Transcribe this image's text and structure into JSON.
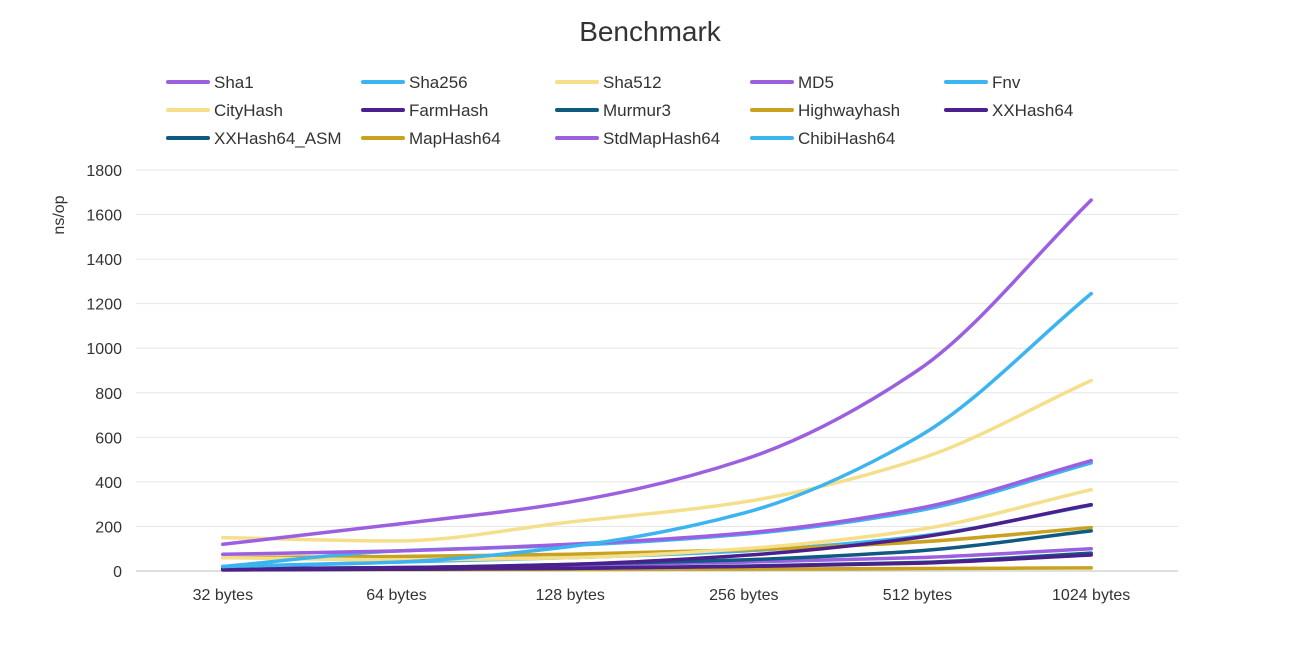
{
  "chart_data": {
    "type": "line",
    "title": "Benchmark",
    "xlabel": "",
    "ylabel": "ns/op",
    "ylim": [
      0,
      1800
    ],
    "yticks": [
      0,
      200,
      400,
      600,
      800,
      1000,
      1200,
      1400,
      1600,
      1800
    ],
    "categories": [
      "32 bytes",
      "64 bytes",
      "128 bytes",
      "256 bytes",
      "512 bytes",
      "1024 bytes"
    ],
    "grid": "horizontal",
    "legend_position": "top",
    "smooth": true,
    "series": [
      {
        "name": "Sha1",
        "color": "#9b5fe0",
        "values": [
          120,
          210,
          310,
          500,
          900,
          1665
        ]
      },
      {
        "name": "Sha256",
        "color": "#3cb4f0",
        "values": [
          20,
          40,
          110,
          260,
          600,
          1245
        ]
      },
      {
        "name": "Sha512",
        "color": "#f5df8a",
        "values": [
          150,
          135,
          220,
          310,
          500,
          855
        ]
      },
      {
        "name": "MD5",
        "color": "#9b5fe0",
        "values": [
          75,
          90,
          120,
          170,
          280,
          495
        ]
      },
      {
        "name": "Fnv",
        "color": "#3cb4f0",
        "values": [
          20,
          90,
          115,
          165,
          270,
          485
        ]
      },
      {
        "name": "CityHash",
        "color": "#f5df8a",
        "values": [
          60,
          50,
          60,
          100,
          185,
          365
        ]
      },
      {
        "name": "FarmHash",
        "color": "#4b1f8c",
        "values": [
          10,
          15,
          30,
          70,
          150,
          298
        ]
      },
      {
        "name": "Murmur3",
        "color": "#0f5a80",
        "values": [
          10,
          15,
          30,
          50,
          90,
          180
        ]
      },
      {
        "name": "Highwayhash",
        "color": "#c9a21f",
        "values": [
          60,
          65,
          75,
          95,
          130,
          195
        ]
      },
      {
        "name": "XXHash64",
        "color": "#4b1f8c",
        "values": [
          5,
          8,
          12,
          20,
          35,
          72
        ]
      },
      {
        "name": "XXHash64_ASM",
        "color": "#0f5a80",
        "values": [
          5,
          8,
          12,
          22,
          38,
          80
        ]
      },
      {
        "name": "MapHash64",
        "color": "#c9a21f",
        "values": [
          5,
          6,
          7,
          9,
          11,
          14
        ]
      },
      {
        "name": "StdMapHash64",
        "color": "#9b5fe0",
        "values": [
          10,
          15,
          25,
          40,
          60,
          100
        ]
      },
      {
        "name": "ChibiHash64",
        "color": "#3cb4f0",
        "values": [
          20,
          40,
          60,
          90,
          155,
          295
        ]
      }
    ]
  }
}
